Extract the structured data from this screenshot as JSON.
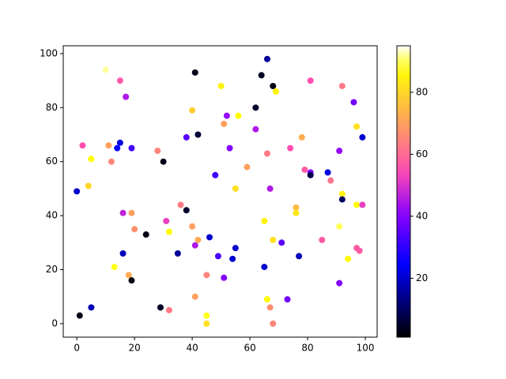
{
  "chart_data": {
    "type": "scatter",
    "x": [
      10,
      15,
      17,
      41,
      66,
      64,
      68,
      69,
      50,
      81,
      92,
      96,
      62,
      40,
      52,
      56,
      51,
      97,
      62,
      38,
      42,
      78,
      99,
      2,
      11,
      15,
      14,
      19,
      28,
      53,
      66,
      74,
      91,
      5,
      12,
      30,
      59,
      79,
      81,
      81,
      87,
      48,
      88,
      4,
      55,
      67,
      0,
      92,
      92,
      36,
      97,
      99,
      38,
      16,
      19,
      76,
      76,
      65,
      31,
      40,
      91,
      20,
      32,
      46,
      42,
      68,
      85,
      71,
      41,
      55,
      97,
      98,
      16,
      35,
      49,
      54,
      77,
      94,
      13,
      65,
      24,
      18,
      19,
      45,
      51,
      91,
      73,
      66,
      41,
      5,
      29,
      67,
      32,
      1,
      45,
      45,
      68
    ],
    "values": [
      94,
      90,
      84,
      93,
      98,
      92,
      88,
      86,
      88,
      90,
      88,
      82,
      80,
      79,
      77,
      77,
      74,
      73,
      72,
      69,
      70,
      69,
      69,
      66,
      66,
      67,
      65,
      65,
      64,
      65,
      63,
      65,
      64,
      61,
      60,
      60,
      58,
      57,
      56,
      55,
      56,
      55,
      53,
      51,
      50,
      50,
      49,
      48,
      46,
      44,
      44,
      44,
      42,
      41,
      41,
      43,
      41,
      38,
      38,
      36,
      36,
      35,
      34,
      32,
      31,
      31,
      31,
      30,
      29,
      28,
      28,
      27,
      26,
      26,
      25,
      24,
      25,
      24,
      21,
      21,
      33,
      18,
      16,
      18,
      17,
      15,
      9,
      9,
      10,
      6,
      6,
      6,
      5,
      3,
      3,
      0,
      0
    ],
    "color_values": [
      92,
      57,
      45,
      3,
      15,
      4,
      3,
      85,
      85,
      55,
      63,
      38,
      5,
      78,
      42,
      87,
      70,
      82,
      45,
      35,
      6,
      72,
      20,
      55,
      70,
      22,
      25,
      32,
      65,
      40,
      63,
      55,
      42,
      87,
      65,
      3,
      70,
      57,
      40,
      8,
      22,
      32,
      62,
      80,
      82,
      45,
      20,
      85,
      10,
      63,
      87,
      52,
      5,
      47,
      70,
      75,
      83,
      85,
      52,
      70,
      90,
      67,
      87,
      20,
      72,
      82,
      57,
      35,
      45,
      20,
      57,
      57,
      18,
      15,
      33,
      20,
      18,
      87,
      88,
      20,
      3,
      72,
      2,
      65,
      40,
      40,
      38,
      87,
      70,
      18,
      4,
      67,
      63,
      3,
      88,
      82,
      65
    ],
    "colormap": "gnuplot2",
    "clim": [
      1,
      95
    ],
    "cticks": [
      20,
      40,
      60,
      80
    ],
    "xlim": [
      -4.7,
      104.1
    ],
    "xticks": [
      0,
      20,
      40,
      60,
      80,
      100
    ],
    "ylim": [
      -5,
      102.9
    ],
    "yticks": [
      0,
      20,
      40,
      60,
      80,
      100
    ]
  }
}
